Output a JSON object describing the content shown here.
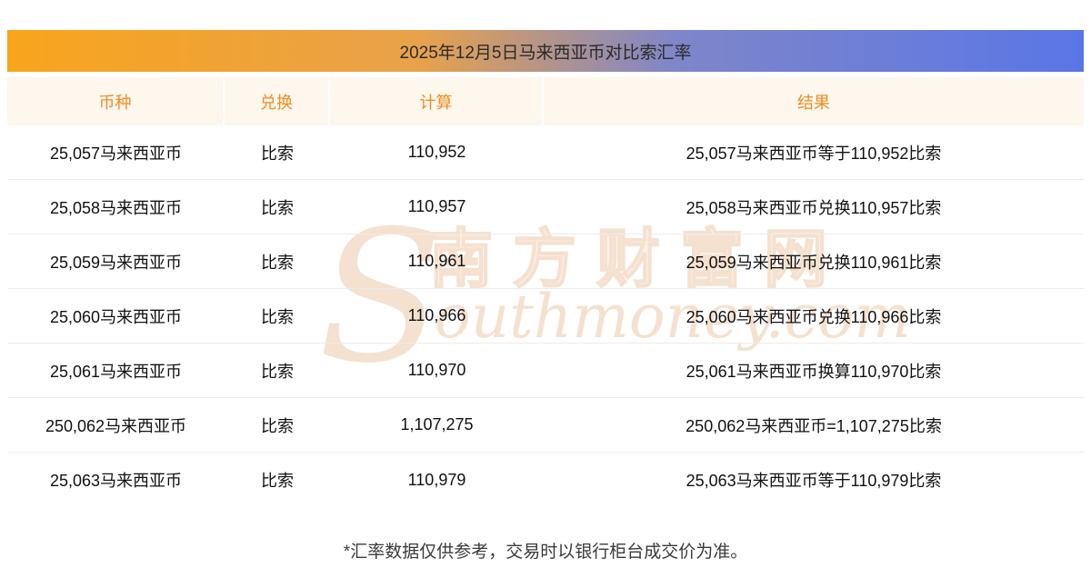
{
  "title": "2025年12月5日马来西亚币对比索汇率",
  "table": {
    "headers": [
      "币种",
      "兑换",
      "计算",
      "结果"
    ],
    "rows": [
      [
        "25,057马来西亚币",
        "比索",
        "110,952",
        "25,057马来西亚币等于110,952比索"
      ],
      [
        "25,058马来西亚币",
        "比索",
        "110,957",
        "25,058马来西亚币兑换110,957比索"
      ],
      [
        "25,059马来西亚币",
        "比索",
        "110,961",
        "25,059马来西亚币兑换110,961比索"
      ],
      [
        "25,060马来西亚币",
        "比索",
        "110,966",
        "25,060马来西亚币兑换110,966比索"
      ],
      [
        "25,061马来西亚币",
        "比索",
        "110,970",
        "25,061马来西亚币换算110,970比索"
      ],
      [
        "250,062马来西亚币",
        "比索",
        "1,107,275",
        "250,062马来西亚币=1,107,275比索"
      ],
      [
        "25,063马来西亚币",
        "比索",
        "110,979",
        "25,063马来西亚币等于110,979比索"
      ]
    ]
  },
  "footer": "*汇率数据仅供参考，交易时以银行柜台成交价为准。",
  "watermark": {
    "initial": "S",
    "cn": "南方财富网",
    "en": "outhmoney.com"
  },
  "colors": {
    "accent": "#f28b1e",
    "title_gradient_left": "#f8a41c",
    "title_gradient_right": "#5a76e6",
    "header_bg": "#fdf7ee",
    "row_border": "#ececec",
    "text": "#111111",
    "watermark": "#f5e1cf"
  }
}
